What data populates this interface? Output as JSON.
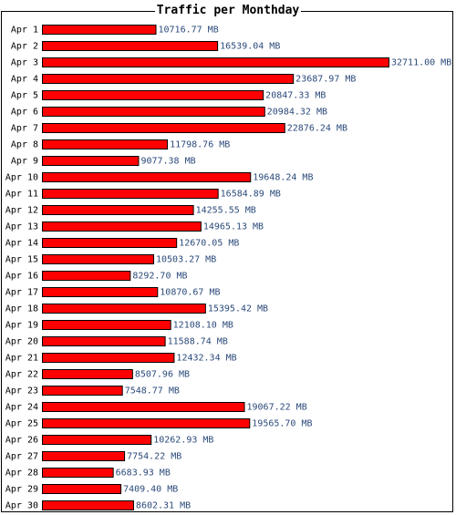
{
  "chart_data": {
    "type": "bar",
    "orientation": "horizontal",
    "title": "Traffic per Monthday",
    "unit": "MB",
    "categories": [
      "Apr 1",
      "Apr 2",
      "Apr 3",
      "Apr 4",
      "Apr 5",
      "Apr 6",
      "Apr 7",
      "Apr 8",
      "Apr 9",
      "Apr 10",
      "Apr 11",
      "Apr 12",
      "Apr 13",
      "Apr 14",
      "Apr 15",
      "Apr 16",
      "Apr 17",
      "Apr 18",
      "Apr 19",
      "Apr 20",
      "Apr 21",
      "Apr 22",
      "Apr 23",
      "Apr 24",
      "Apr 25",
      "Apr 26",
      "Apr 27",
      "Apr 28",
      "Apr 29",
      "Apr 30"
    ],
    "values": [
      10716.77,
      16539.04,
      32711.0,
      23687.97,
      20847.33,
      20984.32,
      22876.24,
      11798.76,
      9077.38,
      19648.24,
      16584.89,
      14255.55,
      14965.13,
      12670.05,
      10503.27,
      8292.7,
      10870.67,
      15395.42,
      12108.1,
      11588.74,
      12432.34,
      8507.96,
      7548.77,
      19067.22,
      19565.7,
      10262.93,
      7754.22,
      6683.93,
      7409.4,
      8602.31
    ],
    "value_labels": [
      "10716.77 MB",
      "16539.04 MB",
      "32711.00 MB",
      "23687.97 MB",
      "20847.33 MB",
      "20984.32 MB",
      "22876.24 MB",
      "11798.76 MB",
      "9077.38 MB",
      "19648.24 MB",
      "16584.89 MB",
      "14255.55 MB",
      "14965.13 MB",
      "12670.05 MB",
      "10503.27 MB",
      "8292.70 MB",
      "10870.67 MB",
      "15395.42 MB",
      "12108.10 MB",
      "11588.74 MB",
      "12432.34 MB",
      "8507.96 MB",
      "7548.77 MB",
      "19067.22 MB",
      "19565.70 MB",
      "10262.93 MB",
      "7754.22 MB",
      "6683.93 MB",
      "7409.40 MB",
      "8602.31 MB"
    ],
    "bar_color": "#ff0000",
    "bar_outline_color": "#000000",
    "value_label_color": "#2b4a7a",
    "grid": false,
    "legend": "none"
  }
}
